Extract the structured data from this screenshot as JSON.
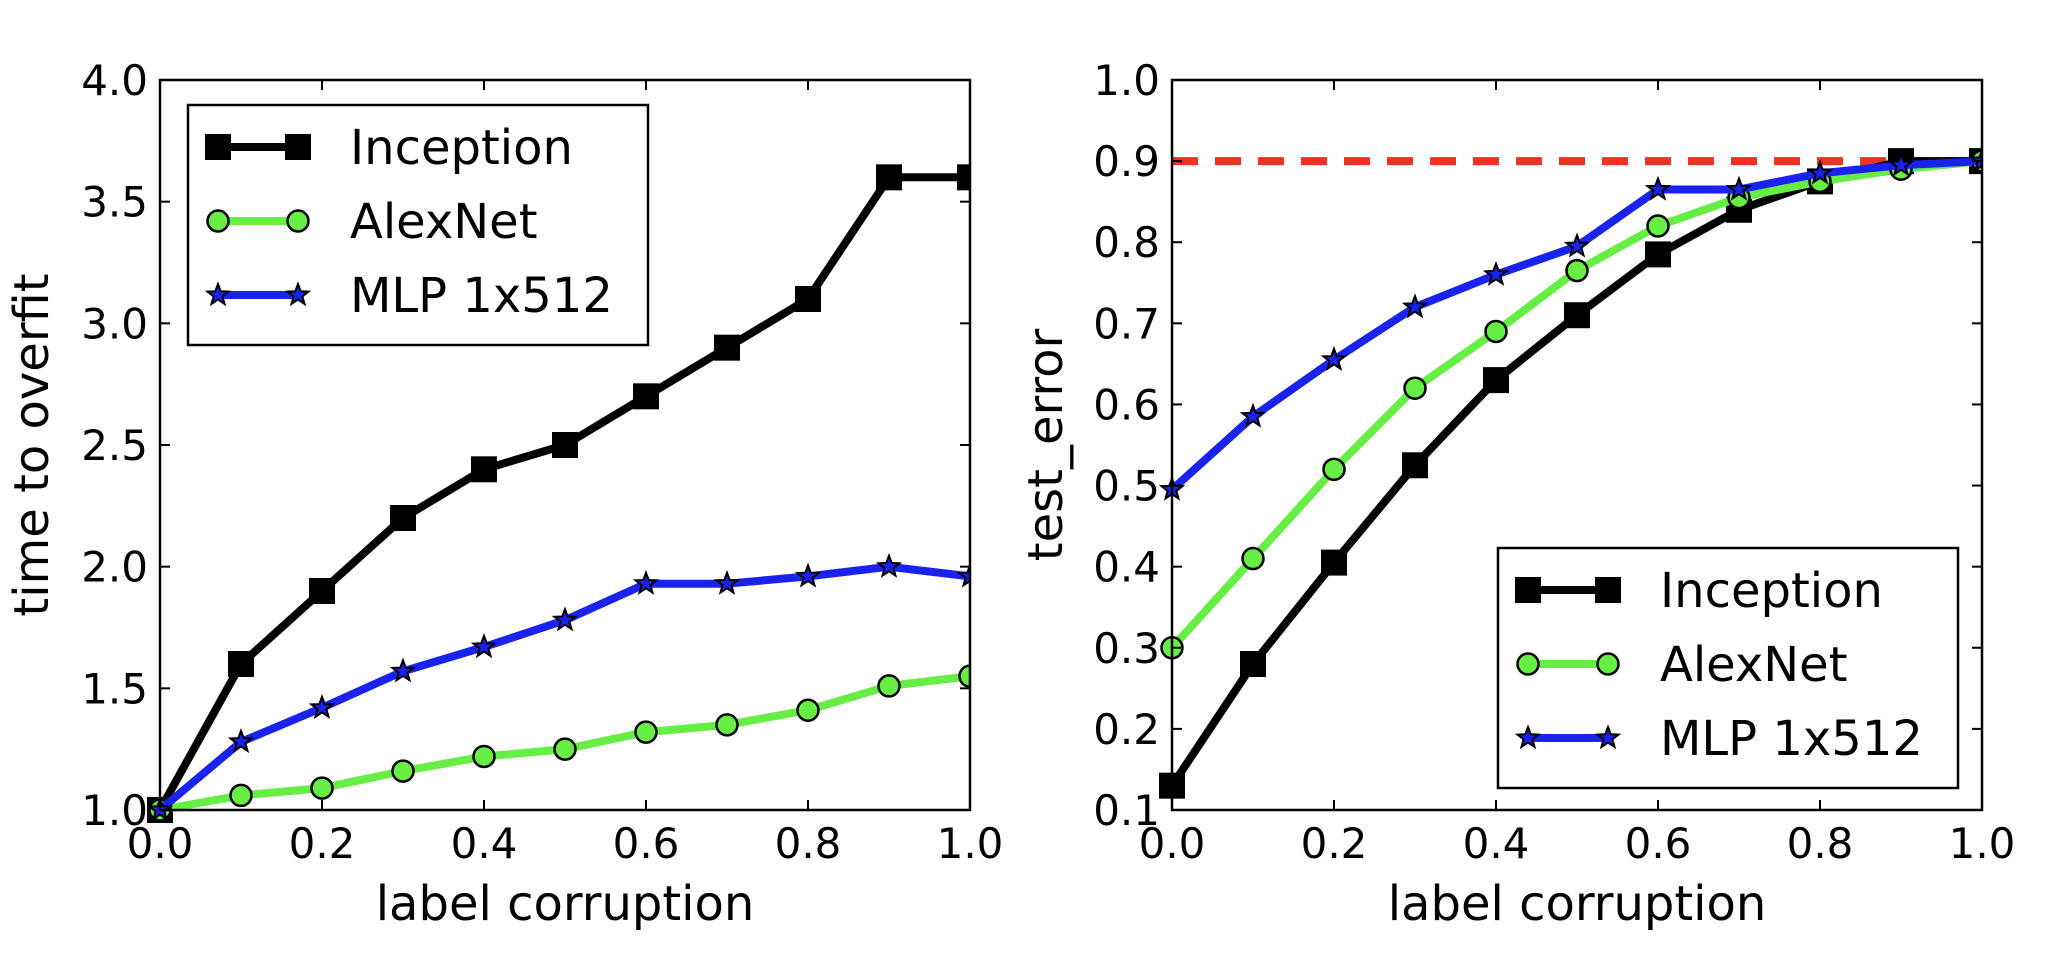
{
  "chart_data": [
    {
      "type": "line",
      "xlabel": "label corruption",
      "ylabel": "time to overfit",
      "xlim": [
        0.0,
        1.0
      ],
      "ylim": [
        1.0,
        4.0
      ],
      "xticks": [
        "0.0",
        "0.2",
        "0.4",
        "0.6",
        "0.8",
        "1.0"
      ],
      "yticks": [
        "1.0",
        "1.5",
        "2.0",
        "2.5",
        "3.0",
        "3.5",
        "4.0"
      ],
      "grid": false,
      "legend_position": "upper-left",
      "x": [
        0.0,
        0.1,
        0.2,
        0.3,
        0.4,
        0.5,
        0.6,
        0.7,
        0.8,
        0.9,
        1.0
      ],
      "series": [
        {
          "name": "Inception",
          "color": "#000000",
          "marker": "square",
          "values": [
            1.0,
            1.6,
            1.9,
            2.2,
            2.4,
            2.5,
            2.7,
            2.9,
            3.1,
            3.6,
            3.6
          ]
        },
        {
          "name": "AlexNet",
          "color": "#66ee44",
          "marker": "circle",
          "values": [
            1.0,
            1.06,
            1.09,
            1.16,
            1.22,
            1.25,
            1.32,
            1.35,
            1.41,
            1.51,
            1.55
          ]
        },
        {
          "name": "MLP 1x512",
          "color": "#1a22ee",
          "marker": "star",
          "values": [
            1.0,
            1.28,
            1.42,
            1.57,
            1.67,
            1.78,
            1.93,
            1.93,
            1.96,
            2.0,
            1.96
          ]
        }
      ],
      "reference_line": null
    },
    {
      "type": "line",
      "xlabel": "label corruption",
      "ylabel": "test_error",
      "xlim": [
        0.0,
        1.0
      ],
      "ylim": [
        0.1,
        1.0
      ],
      "xticks": [
        "0.0",
        "0.2",
        "0.4",
        "0.6",
        "0.8",
        "1.0"
      ],
      "yticks": [
        "0.1",
        "0.2",
        "0.3",
        "0.4",
        "0.5",
        "0.6",
        "0.7",
        "0.8",
        "0.9",
        "1.0"
      ],
      "grid": false,
      "legend_position": "lower-right",
      "x": [
        0.0,
        0.1,
        0.2,
        0.3,
        0.4,
        0.5,
        0.6,
        0.7,
        0.8,
        0.9,
        1.0
      ],
      "series": [
        {
          "name": "Inception",
          "color": "#000000",
          "marker": "square",
          "values": [
            0.13,
            0.28,
            0.405,
            0.525,
            0.63,
            0.71,
            0.785,
            0.84,
            0.875,
            0.9,
            0.9
          ]
        },
        {
          "name": "AlexNet",
          "color": "#66ee44",
          "marker": "circle",
          "values": [
            0.3,
            0.41,
            0.52,
            0.62,
            0.69,
            0.765,
            0.82,
            0.855,
            0.875,
            0.89,
            0.9
          ]
        },
        {
          "name": "MLP 1x512",
          "color": "#1a22ee",
          "marker": "star",
          "values": [
            0.495,
            0.585,
            0.655,
            0.72,
            0.76,
            0.795,
            0.865,
            0.865,
            0.885,
            0.895,
            0.9
          ]
        }
      ],
      "reference_line": {
        "y": 0.9,
        "color": "#ee3322",
        "style": "dashed"
      }
    }
  ]
}
